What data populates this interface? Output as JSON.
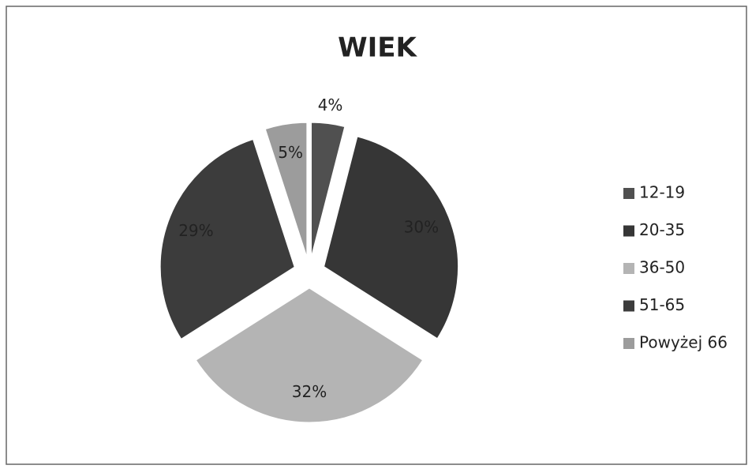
{
  "chart_data": {
    "type": "pie",
    "title": "WIEK",
    "categories": [
      "12-19",
      "20-35",
      "36-50",
      "51-65",
      "Powyżej 66"
    ],
    "values": [
      4,
      30,
      32,
      29,
      5
    ],
    "value_labels": [
      "4%",
      "30%",
      "32%",
      "29%",
      "5%"
    ],
    "colors": [
      "#505050",
      "#363636",
      "#b4b4b4",
      "#3c3c3c",
      "#9c9c9c"
    ],
    "legend": "right"
  }
}
